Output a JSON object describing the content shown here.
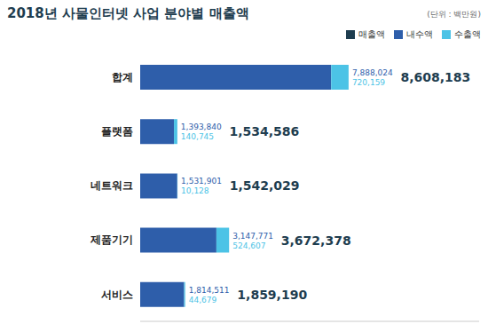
{
  "chart_data": {
    "type": "bar",
    "title": "2018년 사물인터넷 사업 분야별 매출액",
    "subtitle": "(단위 : 백만원)",
    "orientation": "horizontal",
    "stacked": true,
    "data_labels": true,
    "tick_labels": "y",
    "legend": "top right",
    "categories": [
      "합계",
      "플랫폼",
      "네트워크",
      "제품기기",
      "서비스"
    ],
    "xlim": [
      0,
      14000000
    ],
    "series": [
      {
        "name": "내수액",
        "color": "#2e5eaa",
        "values": [
          7888024,
          1393840,
          1531901,
          3147771,
          1814511
        ],
        "value_labels": [
          "7,888,024",
          "1,393,840",
          "1,531,901",
          "3,147,771",
          "1,814,511"
        ]
      },
      {
        "name": "수출액",
        "color": "#4cc3e6",
        "values": [
          720159,
          140745,
          10128,
          524607,
          44679
        ],
        "value_labels": [
          "720,159",
          "140,745",
          "10,128",
          "524,607",
          "44,679"
        ]
      }
    ],
    "total": {
      "name": "매출액",
      "color": "#1e3d4f",
      "values": [
        8608183,
        1534586,
        1542029,
        3672378,
        1859190
      ],
      "value_labels": [
        "8,608,183",
        "1,534,586",
        "1,542,029",
        "3,672,378",
        "1,859,190"
      ]
    }
  }
}
